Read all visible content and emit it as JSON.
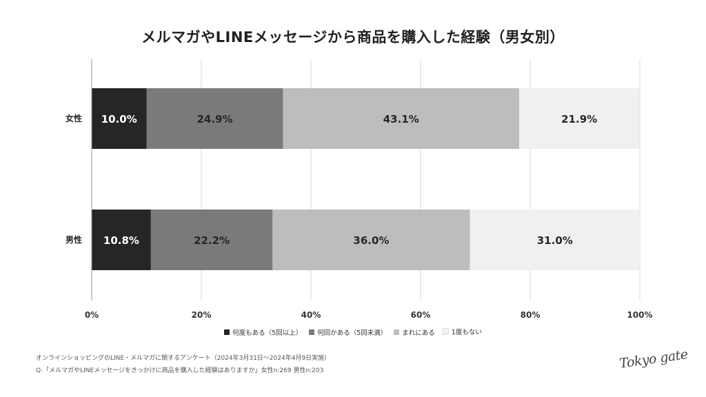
{
  "chart_data": {
    "type": "bar",
    "orientation": "horizontal-stacked",
    "title": "メルマガやLINEメッセージから商品を購入した経験（男女別）",
    "categories": [
      "女性",
      "男性"
    ],
    "series": [
      {
        "name": "何度もある（5回以上）",
        "values": [
          10.0,
          10.8
        ],
        "labels": [
          "10.0%",
          "10.8%"
        ],
        "color": "#262626",
        "label_color": "#ffffff"
      },
      {
        "name": "何回かある（5回未満）",
        "values": [
          24.9,
          22.2
        ],
        "labels": [
          "24.9%",
          "22.2%"
        ],
        "color": "#7a7a7a",
        "label_color": "#262626"
      },
      {
        "name": "まれにある",
        "values": [
          43.1,
          36.0
        ],
        "labels": [
          "43.1%",
          "36.0%"
        ],
        "color": "#bdbdbd",
        "label_color": "#262626"
      },
      {
        "name": "1度もない",
        "values": [
          21.9,
          31.0
        ],
        "labels": [
          "21.9%",
          "31.0%"
        ],
        "color": "#f0f0f0",
        "label_color": "#262626"
      }
    ],
    "x_ticks": [
      "0%",
      "20%",
      "40%",
      "60%",
      "80%",
      "100%"
    ],
    "xlim": [
      0,
      100
    ],
    "grid": true,
    "legend_placement": "bottom"
  },
  "footnotes": {
    "line1": "オンラインショッピングのLINE・メルマガに関するアンケート（2024年3月31日〜2024年4月9日実施）",
    "line2": "Q:「メルマガやLINEメッセージをきっかけに商品を購入した経験はありますか」女性n:269 男性n:203"
  },
  "logo": {
    "text": "Tokyo gate"
  }
}
